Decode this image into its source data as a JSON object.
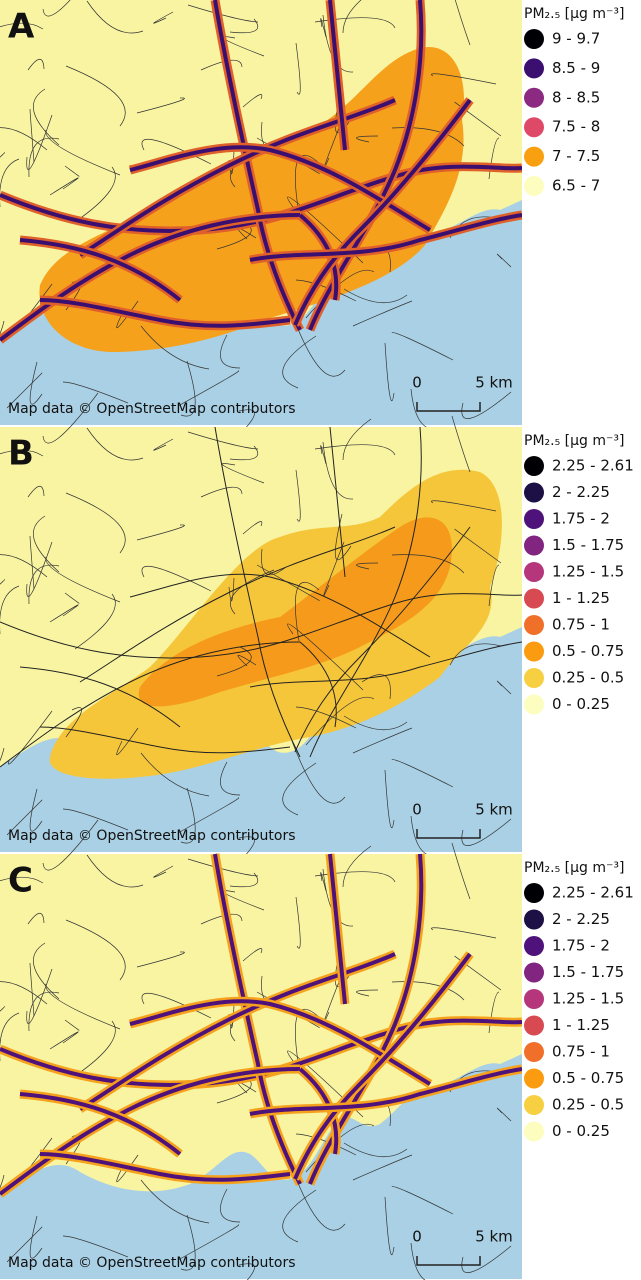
{
  "panels": [
    {
      "label": "A",
      "legend": {
        "title": "PM₂.₅ [µg m⁻³]",
        "items": [
          {
            "label": "9 - 9.7",
            "color": "#000004"
          },
          {
            "label": "8.5 - 9",
            "color": "#3b0f70"
          },
          {
            "label": "8 - 8.5",
            "color": "#8c2981"
          },
          {
            "label": "7.5 - 8",
            "color": "#de4968"
          },
          {
            "label": "7 - 7.5",
            "color": "#f8a010"
          },
          {
            "label": "6.5 - 7",
            "color": "#fcfdbf"
          }
        ]
      },
      "scale": {
        "start": "0",
        "end": "5 km"
      },
      "attribution": "Map data © OpenStreetMap contributors"
    },
    {
      "label": "B",
      "legend": {
        "title": "PM₂.₅ [µg m⁻³]",
        "items": [
          {
            "label": "2.25 - 2.61",
            "color": "#000004"
          },
          {
            "label": "2 - 2.25",
            "color": "#1c1044"
          },
          {
            "label": "1.75 - 2",
            "color": "#4f127b"
          },
          {
            "label": "1.5 - 1.75",
            "color": "#812581"
          },
          {
            "label": "1.25 - 1.5",
            "color": "#b5367a"
          },
          {
            "label": "1 - 1.25",
            "color": "#d84a52"
          },
          {
            "label": "0.75 - 1",
            "color": "#f0702a"
          },
          {
            "label": "0.5 - 0.75",
            "color": "#fb9c10"
          },
          {
            "label": "0.25 - 0.5",
            "color": "#f6d040"
          },
          {
            "label": "0 - 0.25",
            "color": "#fcfdbf"
          }
        ]
      },
      "scale": {
        "start": "0",
        "end": "5 km"
      },
      "attribution": "Map data © OpenStreetMap contributors"
    },
    {
      "label": "C",
      "legend": {
        "title": "PM₂.₅ [µg m⁻³]",
        "items": [
          {
            "label": "2.25 - 2.61",
            "color": "#000004"
          },
          {
            "label": "2 - 2.25",
            "color": "#1c1044"
          },
          {
            "label": "1.75 - 2",
            "color": "#4f127b"
          },
          {
            "label": "1.5 - 1.75",
            "color": "#812581"
          },
          {
            "label": "1.25 - 1.5",
            "color": "#b5367a"
          },
          {
            "label": "1 - 1.25",
            "color": "#d84a52"
          },
          {
            "label": "0.75 - 1",
            "color": "#f0702a"
          },
          {
            "label": "0.5 - 0.75",
            "color": "#fb9c10"
          },
          {
            "label": "0.25 - 0.5",
            "color": "#f6d040"
          },
          {
            "label": "0 - 0.25",
            "color": "#fcfdbf"
          }
        ]
      },
      "scale": {
        "start": "0",
        "end": "5 km"
      },
      "attribution": "Map data © OpenStreetMap contributors"
    }
  ]
}
